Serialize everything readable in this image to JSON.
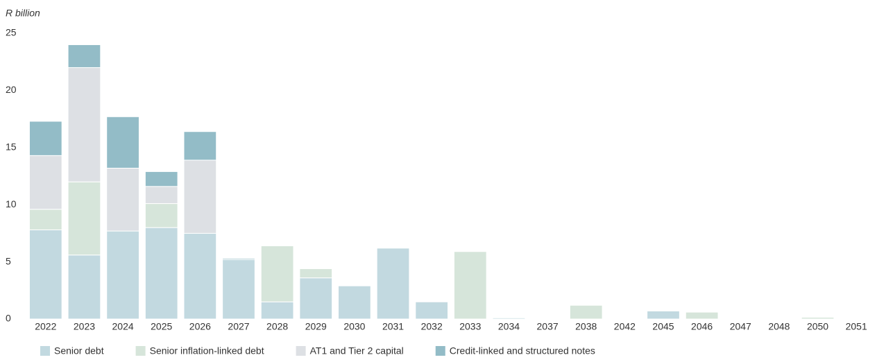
{
  "chart_data": {
    "type": "stacked-bar",
    "y_label": "R billion",
    "categories": [
      "2022",
      "2023",
      "2024",
      "2025",
      "2026",
      "2027",
      "2028",
      "2029",
      "2030",
      "2031",
      "2032",
      "2033",
      "2034",
      "2037",
      "2038",
      "2042",
      "2045",
      "2046",
      "2047",
      "2048",
      "2050",
      "2051"
    ],
    "series": [
      {
        "name": "Senior debt",
        "color": "#c2d9e0",
        "values": [
          7.8,
          5.6,
          7.7,
          8.0,
          7.5,
          5.2,
          1.5,
          3.6,
          2.9,
          6.2,
          1.5,
          0,
          0.1,
          0,
          0,
          0.05,
          0.7,
          0,
          0,
          0,
          0,
          0
        ]
      },
      {
        "name": "Senior inflation-linked debt",
        "color": "#d6e5da",
        "values": [
          1.8,
          6.4,
          0,
          2.1,
          0,
          0,
          4.9,
          0.8,
          0,
          0,
          0,
          5.9,
          0,
          0,
          1.2,
          0,
          0,
          0.6,
          0,
          0,
          0.15,
          0
        ]
      },
      {
        "name": "AT1 and Tier 2 capital",
        "color": "#dde0e4",
        "values": [
          4.7,
          10.0,
          5.5,
          1.5,
          6.4,
          0,
          0,
          0,
          0,
          0,
          0,
          0,
          0,
          0,
          0,
          0,
          0,
          0,
          0,
          0,
          0,
          0
        ]
      },
      {
        "name": "Credit-linked and structured notes",
        "color": "#93bcc7",
        "values": [
          3.0,
          2.0,
          4.5,
          1.3,
          2.5,
          0.1,
          0,
          0,
          0,
          0,
          0,
          0,
          0,
          0,
          0,
          0,
          0,
          0,
          0,
          0,
          0,
          0
        ]
      }
    ],
    "ylim": [
      0,
      25
    ],
    "yticks": [
      0,
      5,
      10,
      15,
      20,
      25
    ],
    "grid": false
  }
}
